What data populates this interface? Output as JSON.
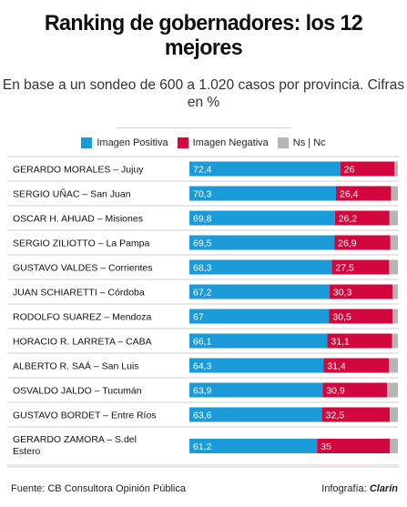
{
  "colors": {
    "positive": "#1a9ad6",
    "negative": "#d1073e",
    "nsnc": "#b5b5b5"
  },
  "footer": {
    "source": "Fuente: CB Consultora Opinión Pública",
    "credit_prefix": "Infografía:",
    "credit_brand": "Clarín"
  },
  "chart_data": {
    "type": "bar",
    "orientation": "horizontal",
    "stacked": true,
    "title": "Ranking de gobernadores: los 12 mejores",
    "subtitle": "En base a un sondeo de 600 a 1.020 casos por provincia. Cifras en %",
    "legend_position": "top",
    "categories": [
      "GERARDO MORALES – Jujuy",
      "SERGIO UÑAC – San Juan",
      "OSCAR H. AHUAD – Misiones",
      "SERGIO ZILIOTTO – La Pampa",
      "GUSTAVO VALDES – Corrientes",
      "JUAN SCHIARETTI – Córdoba",
      "RODOLFO SUAREZ – Mendoza",
      "HORACIO R. LARRETA – CABA",
      "ALBERTO R. SAÁ – San Luis",
      "OSVALDO JALDO – Tucumán",
      "GUSTAVO BORDET – Entre Ríos",
      "GERARDO ZAMORA – S.del Estero"
    ],
    "series": [
      {
        "name": "Imagen Positiva",
        "values": [
          72.4,
          70.3,
          69.8,
          69.5,
          68.3,
          67.2,
          67,
          66.1,
          64.3,
          63.9,
          63.6,
          61.2
        ],
        "labels": [
          "72,4",
          "70,3",
          "69,8",
          "69,5",
          "68,3",
          "67,2",
          "67",
          "66,1",
          "64,3",
          "63,9",
          "63,6",
          "61,2"
        ]
      },
      {
        "name": "Imagen Negativa",
        "values": [
          26,
          26.4,
          26.2,
          26.9,
          27.5,
          30.3,
          30.5,
          31.1,
          31.4,
          30.9,
          32.5,
          35
        ],
        "labels": [
          "26",
          "26,4",
          "26,2",
          "26,9",
          "27,5",
          "30,3",
          "30,5",
          "31,1",
          "31,4",
          "30,9",
          "32,5",
          "35"
        ]
      },
      {
        "name": "Ns | Nc",
        "values": [
          1.6,
          3.3,
          4.0,
          3.6,
          4.2,
          2.5,
          2.5,
          2.8,
          4.3,
          5.2,
          3.9,
          3.8
        ]
      }
    ],
    "xlim": [
      0,
      100
    ]
  }
}
